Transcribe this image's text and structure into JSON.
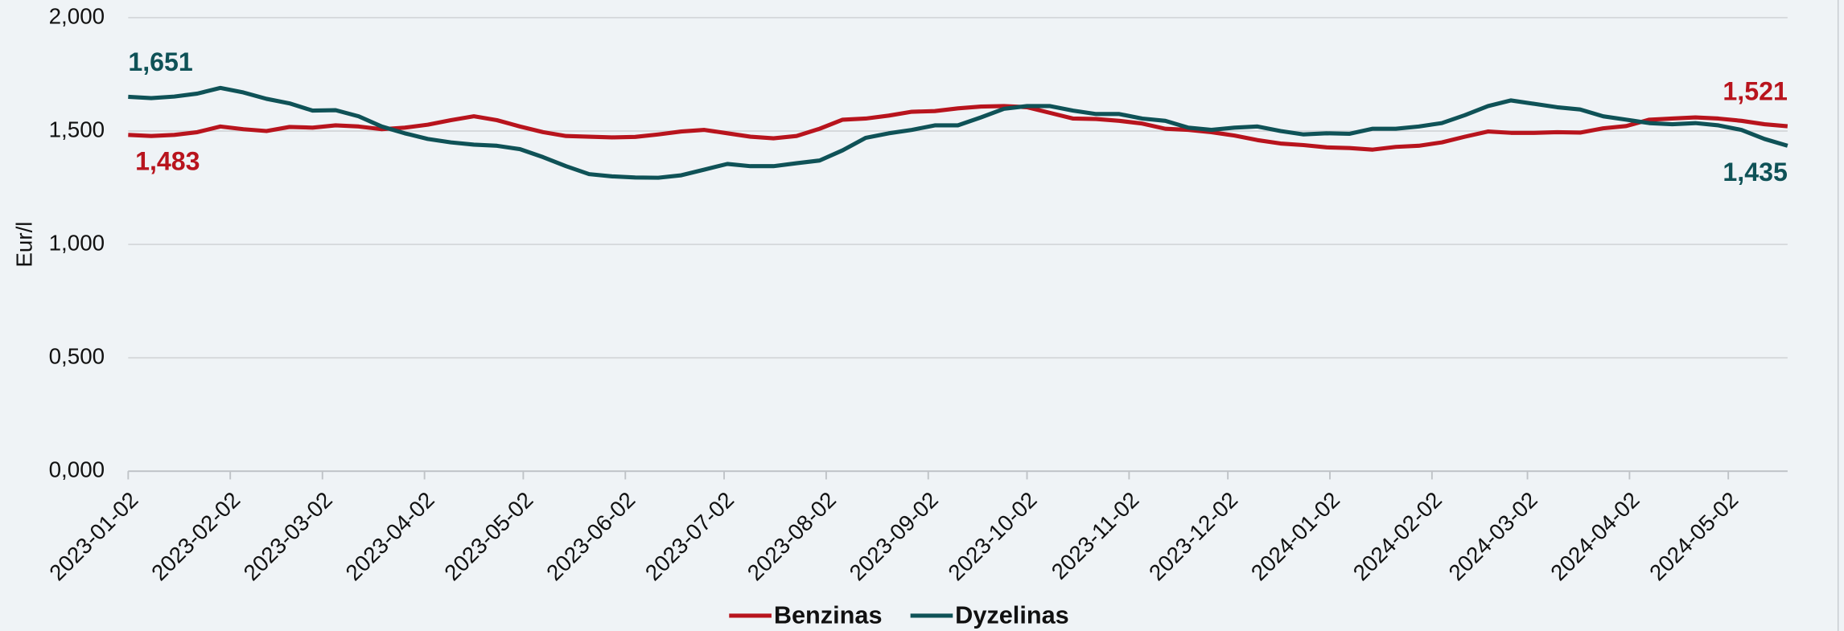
{
  "chart_data": {
    "type": "line",
    "y_label": "Eur/l",
    "x": [
      "2023-01-02",
      "2023-01-09",
      "2023-01-16",
      "2023-01-23",
      "2023-01-30",
      "2023-02-06",
      "2023-02-13",
      "2023-02-20",
      "2023-02-27",
      "2023-03-06",
      "2023-03-13",
      "2023-03-20",
      "2023-03-27",
      "2023-04-03",
      "2023-04-10",
      "2023-04-17",
      "2023-04-24",
      "2023-05-01",
      "2023-05-08",
      "2023-05-15",
      "2023-05-22",
      "2023-05-29",
      "2023-06-05",
      "2023-06-12",
      "2023-06-19",
      "2023-06-26",
      "2023-07-03",
      "2023-07-10",
      "2023-07-17",
      "2023-07-24",
      "2023-07-31",
      "2023-08-07",
      "2023-08-14",
      "2023-08-21",
      "2023-08-28",
      "2023-09-04",
      "2023-09-11",
      "2023-09-18",
      "2023-09-25",
      "2023-10-02",
      "2023-10-09",
      "2023-10-16",
      "2023-10-23",
      "2023-10-30",
      "2023-11-06",
      "2023-11-13",
      "2023-11-20",
      "2023-11-27",
      "2023-12-04",
      "2023-12-11",
      "2023-12-18",
      "2023-12-25",
      "2024-01-01",
      "2024-01-08",
      "2024-01-15",
      "2024-01-22",
      "2024-01-29",
      "2024-02-05",
      "2024-02-12",
      "2024-02-19",
      "2024-02-26",
      "2024-03-04",
      "2024-03-11",
      "2024-03-18",
      "2024-03-25",
      "2024-04-01",
      "2024-04-08",
      "2024-04-15",
      "2024-04-22",
      "2024-04-29",
      "2024-05-06",
      "2024-05-13",
      "2024-05-20"
    ],
    "series": [
      {
        "name": "Benzinas",
        "color": "#b8141d",
        "values": [
          1.483,
          1.478,
          1.483,
          1.495,
          1.52,
          1.508,
          1.5,
          1.518,
          1.515,
          1.525,
          1.52,
          1.508,
          1.515,
          1.528,
          1.548,
          1.565,
          1.548,
          1.52,
          1.495,
          1.478,
          1.475,
          1.472,
          1.474,
          1.485,
          1.498,
          1.505,
          1.49,
          1.475,
          1.468,
          1.478,
          1.51,
          1.55,
          1.555,
          1.568,
          1.585,
          1.588,
          1.6,
          1.608,
          1.61,
          1.605,
          1.58,
          1.555,
          1.553,
          1.545,
          1.533,
          1.51,
          1.505,
          1.495,
          1.48,
          1.46,
          1.445,
          1.438,
          1.428,
          1.425,
          1.418,
          1.43,
          1.435,
          1.45,
          1.475,
          1.498,
          1.492,
          1.492,
          1.495,
          1.493,
          1.512,
          1.522,
          1.55,
          1.555,
          1.56,
          1.555,
          1.545,
          1.53,
          1.521
        ],
        "value_labels": [
          "1,483",
          null,
          null,
          null,
          null,
          null,
          null,
          null,
          null,
          null,
          null,
          null,
          null,
          null,
          null,
          null,
          null,
          null,
          null,
          null,
          null,
          null,
          null,
          null,
          null,
          null,
          null,
          null,
          null,
          null,
          null,
          null,
          null,
          null,
          null,
          null,
          null,
          null,
          null,
          null,
          null,
          null,
          null,
          null,
          null,
          null,
          null,
          null,
          null,
          null,
          null,
          null,
          null,
          null,
          null,
          null,
          null,
          null,
          null,
          null,
          null,
          null,
          null,
          null,
          null,
          null,
          null,
          null,
          null,
          null,
          null,
          null,
          "1,521"
        ]
      },
      {
        "name": "Dyzelinas",
        "color": "#0f5257",
        "values": [
          1.651,
          1.645,
          1.652,
          1.665,
          1.69,
          1.67,
          1.642,
          1.622,
          1.59,
          1.592,
          1.565,
          1.52,
          1.49,
          1.465,
          1.45,
          1.44,
          1.435,
          1.42,
          1.385,
          1.345,
          1.31,
          1.3,
          1.295,
          1.294,
          1.305,
          1.33,
          1.355,
          1.345,
          1.345,
          1.358,
          1.37,
          1.415,
          1.47,
          1.49,
          1.505,
          1.525,
          1.525,
          1.56,
          1.598,
          1.61,
          1.61,
          1.59,
          1.575,
          1.575,
          1.555,
          1.545,
          1.515,
          1.505,
          1.515,
          1.52,
          1.5,
          1.485,
          1.49,
          1.488,
          1.51,
          1.51,
          1.52,
          1.535,
          1.57,
          1.61,
          1.635,
          1.62,
          1.605,
          1.595,
          1.565,
          1.55,
          1.535,
          1.53,
          1.535,
          1.525,
          1.505,
          1.465,
          1.435
        ],
        "value_labels": [
          "1,651",
          null,
          null,
          null,
          null,
          null,
          null,
          null,
          null,
          null,
          null,
          null,
          null,
          null,
          null,
          null,
          null,
          null,
          null,
          null,
          null,
          null,
          null,
          null,
          null,
          null,
          null,
          null,
          null,
          null,
          null,
          null,
          null,
          null,
          null,
          null,
          null,
          null,
          null,
          null,
          null,
          null,
          null,
          null,
          null,
          null,
          null,
          null,
          null,
          null,
          null,
          null,
          null,
          null,
          null,
          null,
          null,
          null,
          null,
          null,
          null,
          null,
          null,
          null,
          null,
          null,
          null,
          null,
          null,
          null,
          null,
          null,
          "1,435"
        ]
      }
    ],
    "xlim": [
      "2023-01-02",
      "2024-05-20"
    ],
    "xticks": [
      "2023-01-02",
      "2023-02-02",
      "2023-03-02",
      "2023-04-02",
      "2023-05-02",
      "2023-06-02",
      "2023-07-02",
      "2023-08-02",
      "2023-09-02",
      "2023-10-02",
      "2023-11-02",
      "2023-12-02",
      "2024-01-02",
      "2024-02-02",
      "2024-03-02",
      "2024-04-02",
      "2024-05-02"
    ],
    "ylim": [
      0,
      2
    ],
    "yticks": [
      {
        "value": 0,
        "label": "0,000"
      },
      {
        "value": 0.5,
        "label": "0,500"
      },
      {
        "value": 1,
        "label": "1,000"
      },
      {
        "value": 1.5,
        "label": "1,500"
      },
      {
        "value": 2,
        "label": "2,000"
      }
    ],
    "grid": true,
    "legend": "bottom"
  }
}
